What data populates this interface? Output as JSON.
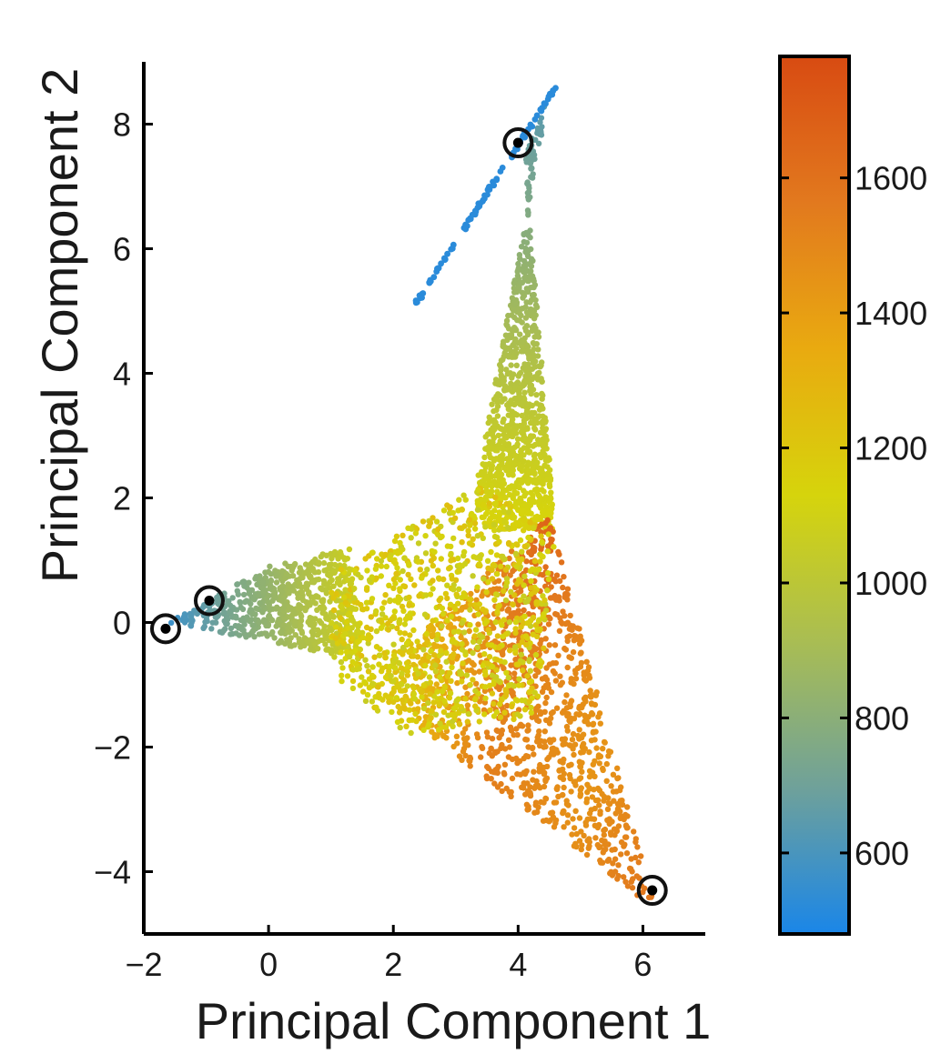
{
  "chart_data": {
    "type": "scatter",
    "title": "",
    "xlabel": "Principal Component 1",
    "ylabel": "Principal Component 2",
    "xlim": [
      -2,
      7
    ],
    "ylim": [
      -5,
      9
    ],
    "x_ticks": [
      -2,
      0,
      2,
      4,
      6
    ],
    "y_ticks": [
      -4,
      -2,
      0,
      2,
      4,
      6,
      8
    ],
    "x_tick_labels": [
      "−2",
      "0",
      "2",
      "4",
      "6"
    ],
    "y_tick_labels": [
      "−4",
      "−2",
      "0",
      "2",
      "4",
      "6",
      "8"
    ],
    "grid": false,
    "colorbar": {
      "range": [
        480,
        1780
      ],
      "ticks": [
        600,
        800,
        1000,
        1200,
        1400,
        1600
      ],
      "colormap": [
        "#1a86e8",
        "#6fa19a",
        "#a9bd53",
        "#d6d40c",
        "#e9aa10",
        "#e2791e",
        "#d84b12"
      ]
    },
    "point_clouds": [
      {
        "region": "left-arm",
        "vertices": [
          [
            -1.6,
            0.0
          ],
          [
            0.0,
            0.9
          ],
          [
            1.3,
            1.2
          ],
          [
            1.5,
            -0.6
          ]
        ],
        "value_range": [
          560,
          1100
        ],
        "count": 700
      },
      {
        "region": "top-arm",
        "vertices": [
          [
            4.5,
            8.5
          ],
          [
            3.2,
            1.5
          ],
          [
            4.6,
            1.5
          ],
          [
            4.1,
            7.5
          ]
        ],
        "value_range": [
          620,
          1150
        ],
        "count": 1000
      },
      {
        "region": "lower-right-arm",
        "vertices": [
          [
            6.2,
            -4.6
          ],
          [
            4.5,
            1.7
          ],
          [
            1.5,
            -1.0
          ]
        ],
        "value_range": [
          1150,
          1700
        ],
        "count": 1200
      },
      {
        "region": "center",
        "vertices": [
          [
            1.0,
            0.8
          ],
          [
            3.4,
            2.2
          ],
          [
            4.6,
            1.4
          ],
          [
            4.3,
            -1.5
          ],
          [
            2.2,
            -1.8
          ],
          [
            1.0,
            -0.8
          ]
        ],
        "value_range": [
          1050,
          1250
        ],
        "count": 900
      }
    ],
    "line_segment": {
      "from": [
        2.35,
        5.1
      ],
      "to": [
        4.6,
        8.6
      ],
      "value": 520,
      "count": 90
    },
    "highlighted_points": [
      {
        "x": -1.65,
        "y": -0.1
      },
      {
        "x": -0.95,
        "y": 0.35
      },
      {
        "x": 4.0,
        "y": 7.7
      },
      {
        "x": 6.15,
        "y": -4.3
      }
    ]
  }
}
